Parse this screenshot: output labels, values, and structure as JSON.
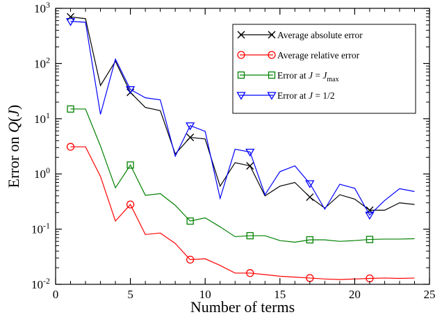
{
  "chart_data": {
    "type": "line",
    "xlabel": "Number of terms",
    "ylabel": "Error on Q(J)",
    "xlim": [
      0,
      25
    ],
    "ylim": [
      0.01,
      1000
    ],
    "yscale": "log",
    "x_ticks": [
      0,
      5,
      10,
      15,
      20,
      25
    ],
    "y_ticks": [
      {
        "value": 0.01,
        "base": "10",
        "exp": "-2"
      },
      {
        "value": 0.1,
        "base": "10",
        "exp": "-1"
      },
      {
        "value": 1,
        "base": "10",
        "exp": "0"
      },
      {
        "value": 10,
        "base": "10",
        "exp": "1"
      },
      {
        "value": 100,
        "base": "10",
        "exp": "2"
      },
      {
        "value": 1000,
        "base": "10",
        "exp": "3"
      }
    ],
    "legend_position": "top-right",
    "x": [
      1,
      2,
      3,
      4,
      5,
      6,
      7,
      8,
      9,
      10,
      11,
      12,
      13,
      14,
      15,
      16,
      17,
      18,
      19,
      20,
      21,
      22,
      23,
      24
    ],
    "series": [
      {
        "name": "Average absolute error",
        "color": "#000000",
        "marker": "x",
        "marker_every": 4,
        "values": [
          700,
          650,
          40,
          110,
          30,
          16,
          14,
          2.3,
          4.6,
          4.3,
          0.6,
          1.6,
          1.4,
          0.4,
          0.6,
          0.7,
          0.38,
          0.24,
          0.42,
          0.35,
          0.22,
          0.22,
          0.3,
          0.28
        ]
      },
      {
        "name": "Average relative error",
        "color": "#ff0000",
        "marker": "circle",
        "marker_every": 4,
        "values": [
          3.1,
          3.1,
          0.9,
          0.14,
          0.28,
          0.08,
          0.085,
          0.055,
          0.028,
          0.029,
          0.022,
          0.016,
          0.016,
          0.015,
          0.014,
          0.0135,
          0.013,
          0.0125,
          0.0122,
          0.0125,
          0.0128,
          0.013,
          0.0128,
          0.013
        ]
      },
      {
        "name": "Error at J = J_max",
        "label_main": "Error at J = J",
        "label_sub": "max",
        "color": "#008000",
        "marker": "square",
        "marker_every": 4,
        "values": [
          15,
          15,
          3.2,
          0.56,
          1.45,
          0.41,
          0.44,
          0.27,
          0.14,
          0.16,
          0.11,
          0.073,
          0.076,
          0.076,
          0.062,
          0.058,
          0.064,
          0.064,
          0.06,
          0.062,
          0.065,
          0.066,
          0.066,
          0.067
        ]
      },
      {
        "name": "Error at J = 1/2",
        "color": "#0000ff",
        "marker": "triangle-down",
        "marker_every": 4,
        "values": [
          580,
          560,
          12,
          120,
          34,
          24,
          22,
          2.1,
          7.5,
          5.9,
          0.36,
          2.8,
          2.5,
          0.42,
          1.1,
          1.4,
          0.67,
          0.23,
          0.65,
          0.55,
          0.18,
          0.33,
          0.54,
          0.48
        ]
      }
    ]
  }
}
